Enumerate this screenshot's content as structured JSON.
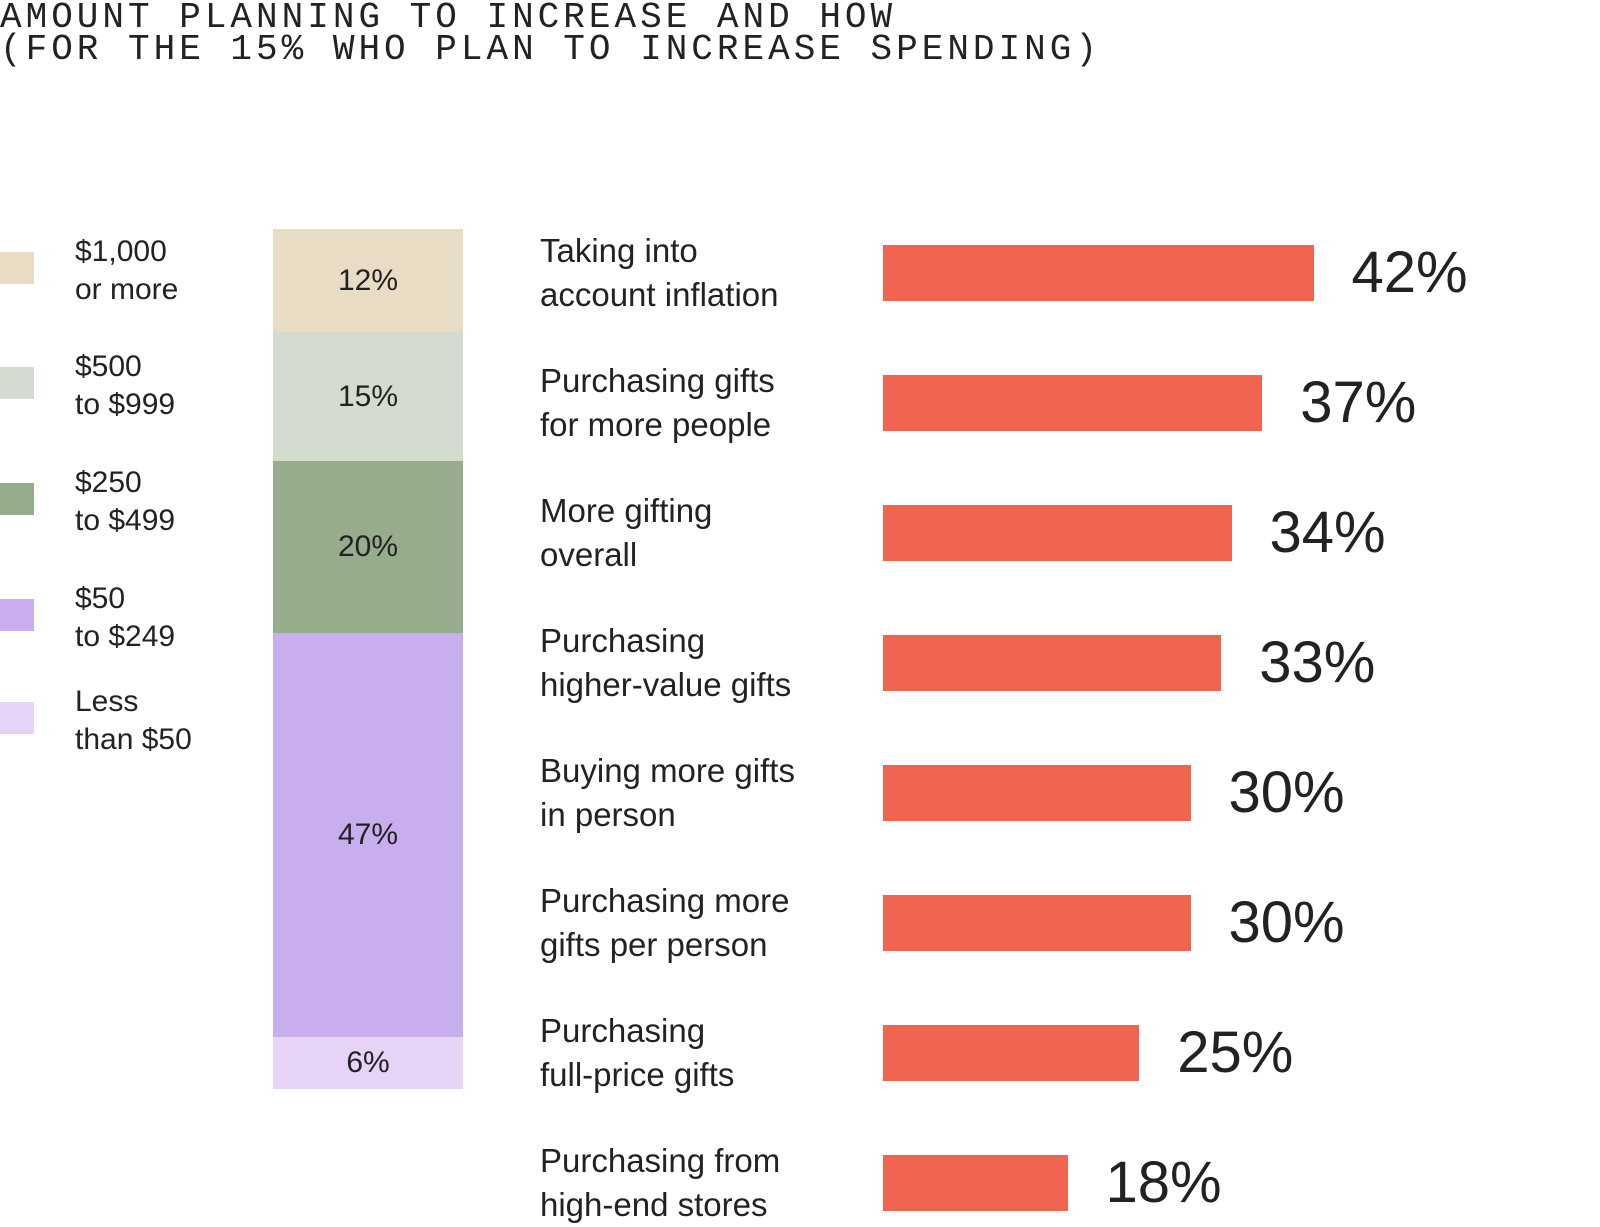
{
  "title_lines": [
    "AMOUNT PLANNING TO INCREASE AND HOW",
    "(FOR THE 15% WHO PLAN TO INCREASE SPENDING)"
  ],
  "chart_data": [
    {
      "type": "bar",
      "stacked": true,
      "orientation": "vertical",
      "legend_placement": "left",
      "categories": [
        "$1,000 or more",
        "$500 to $999",
        "$250 to $499",
        "$50 to $249",
        "Less than $50"
      ],
      "legend_lines": [
        [
          "$1,000",
          "or more"
        ],
        [
          "$500",
          "to $999"
        ],
        [
          "$250",
          "to $499"
        ],
        [
          "$50",
          "to $249"
        ],
        [
          "Less",
          "than $50"
        ]
      ],
      "values": [
        12,
        15,
        20,
        47,
        6
      ],
      "value_labels": [
        "12%",
        "15%",
        "20%",
        "47%",
        "6%"
      ],
      "colors": [
        "#e9dcc4",
        "#d3dcce",
        "#97ac8d",
        "#c9aeee",
        "#e6d3f6"
      ]
    },
    {
      "type": "bar",
      "orientation": "horizontal",
      "categories": [
        "Taking into account inflation",
        "Purchasing gifts for more people",
        "More gifting overall",
        "Purchasing higher-value gifts",
        "Buying more gifts in person",
        "Purchasing more gifts per person",
        "Purchasing full-price gifts",
        "Purchasing from high-end stores"
      ],
      "category_lines": [
        [
          "Taking into",
          "account inflation"
        ],
        [
          "Purchasing gifts",
          "for more people"
        ],
        [
          "More gifting",
          "overall"
        ],
        [
          "Purchasing",
          "higher-value gifts"
        ],
        [
          "Buying more gifts",
          "in person"
        ],
        [
          "Purchasing more",
          "gifts per person"
        ],
        [
          "Purchasing",
          "full-price gifts"
        ],
        [
          "Purchasing from",
          "high-end stores"
        ]
      ],
      "values": [
        42,
        37,
        34,
        33,
        30,
        30,
        25,
        18
      ],
      "value_labels": [
        "42%",
        "37%",
        "34%",
        "33%",
        "30%",
        "30%",
        "25%",
        "18%"
      ],
      "bar_color": "#f06450",
      "grid": false
    }
  ]
}
